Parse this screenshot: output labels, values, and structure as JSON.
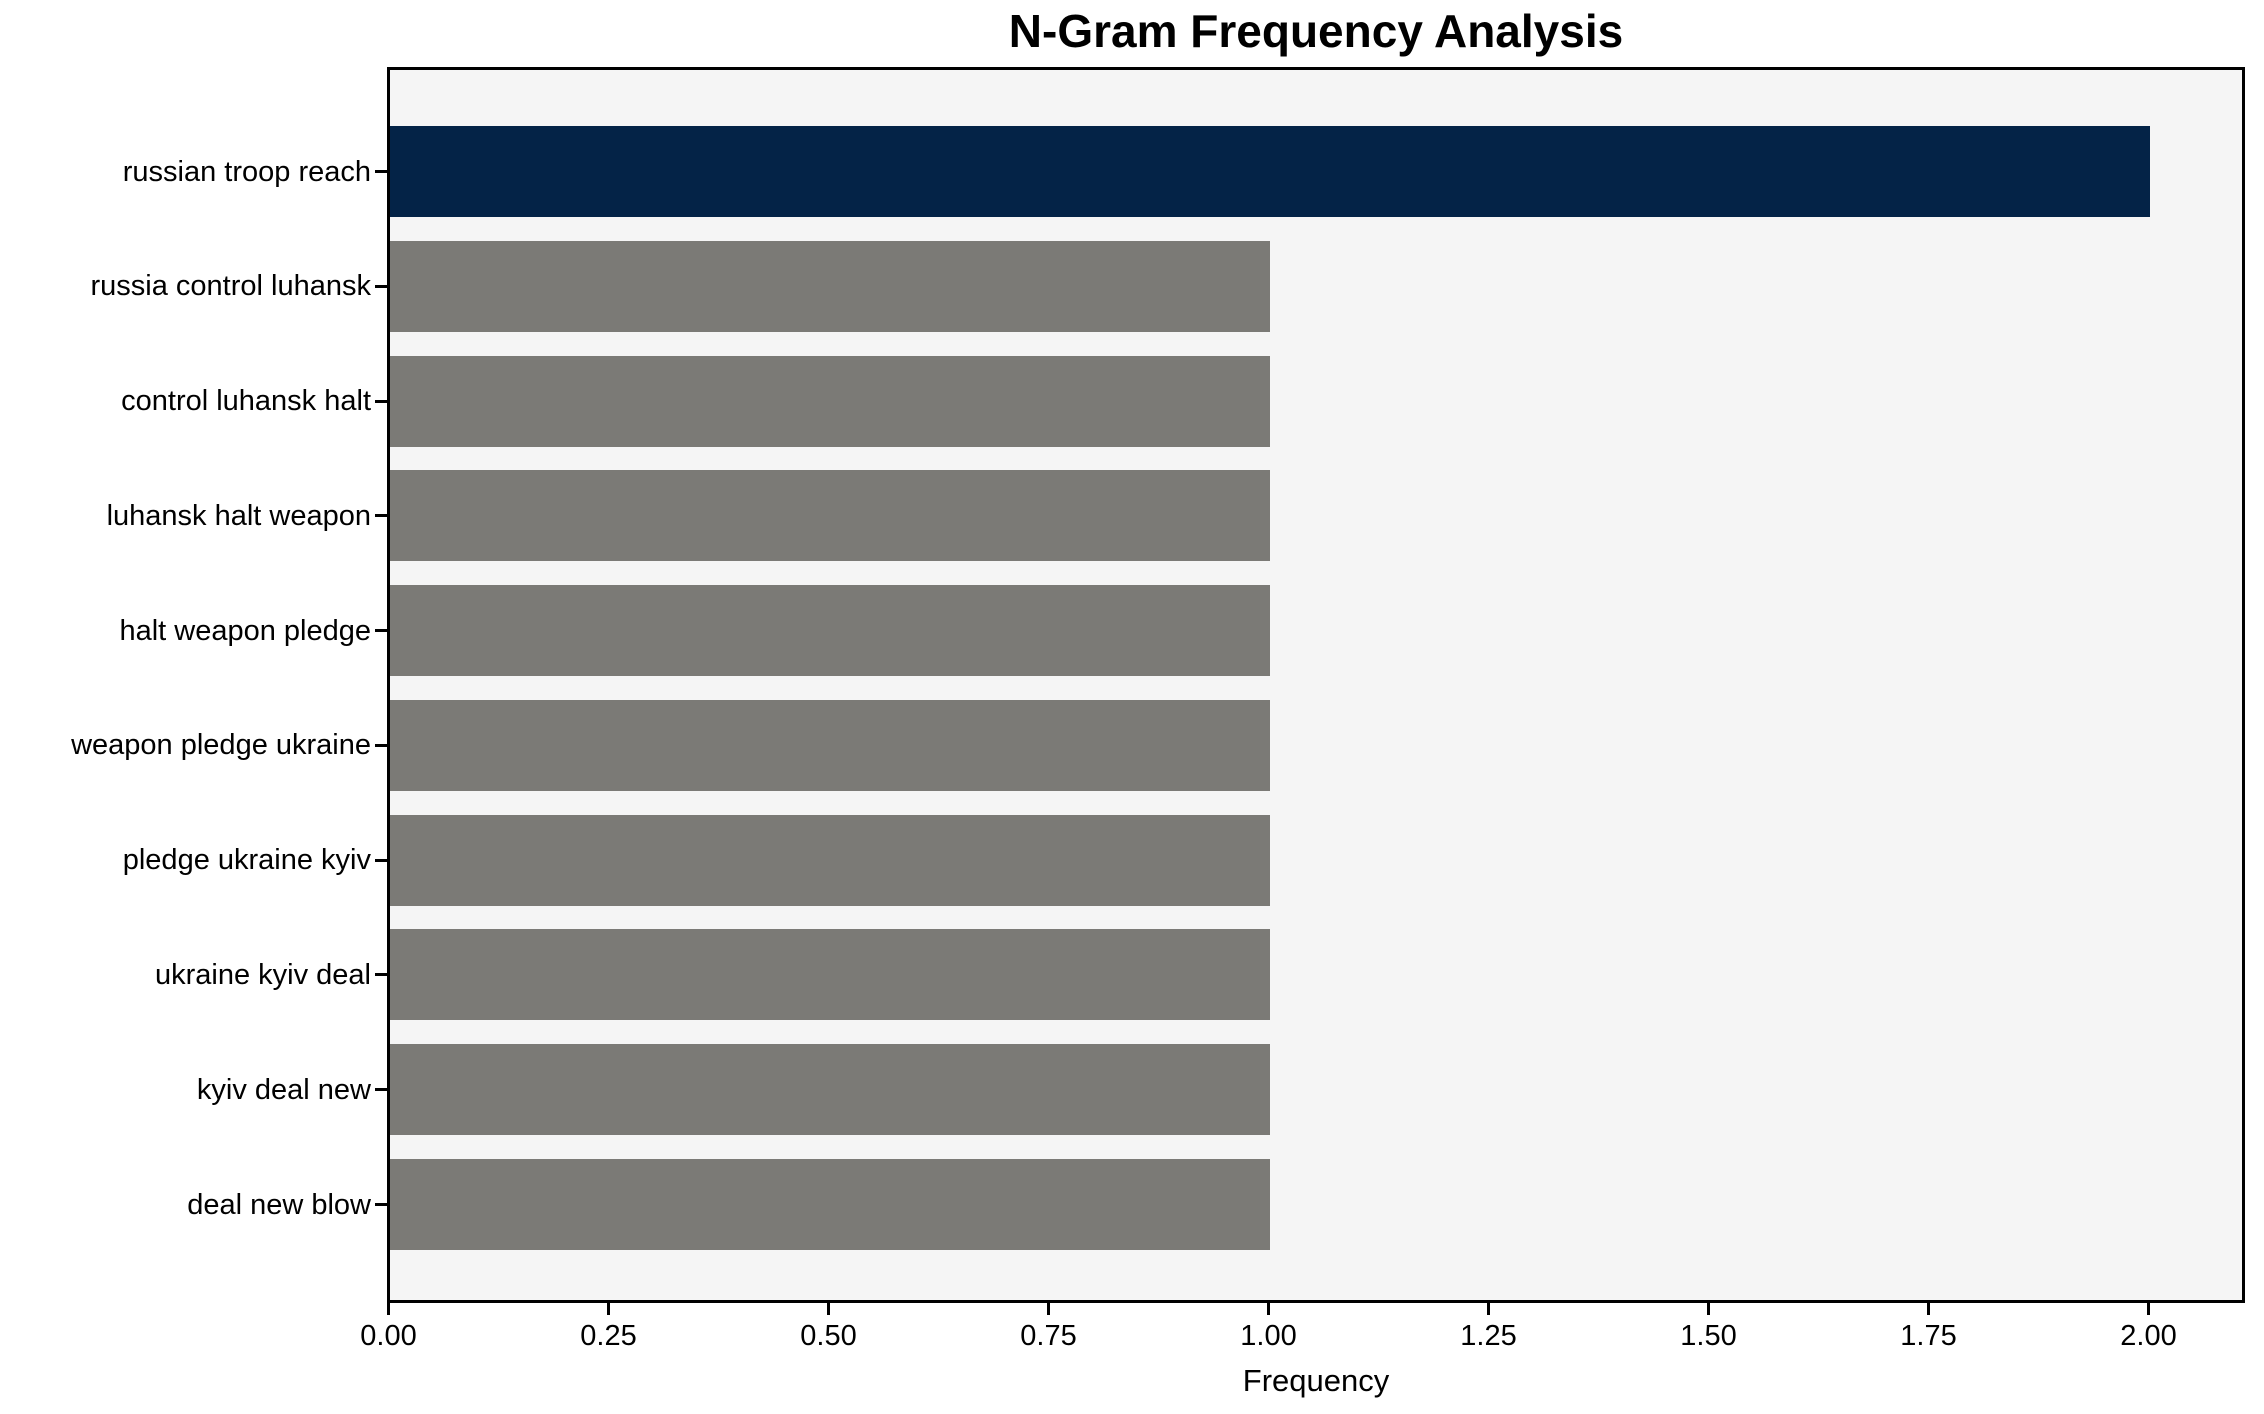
{
  "chart_data": {
    "type": "bar",
    "orientation": "horizontal",
    "title": "N-Gram Frequency Analysis",
    "xlabel": "Frequency",
    "ylabel": "",
    "categories": [
      "russian troop reach",
      "russia control luhansk",
      "control luhansk halt",
      "luhansk halt weapon",
      "halt weapon pledge",
      "weapon pledge ukraine",
      "pledge ukraine kyiv",
      "ukraine kyiv deal",
      "kyiv deal new",
      "deal new blow"
    ],
    "values": [
      2,
      1,
      1,
      1,
      1,
      1,
      1,
      1,
      1,
      1
    ],
    "bar_colors": [
      "#042347",
      "#7b7a76",
      "#7b7a76",
      "#7b7a76",
      "#7b7a76",
      "#7b7a76",
      "#7b7a76",
      "#7b7a76",
      "#7b7a76",
      "#7b7a76"
    ],
    "xlim": [
      0,
      2.11
    ],
    "xticks": [
      0,
      0.25,
      0.5,
      0.75,
      1.0,
      1.25,
      1.5,
      1.75,
      2.0
    ],
    "xtick_labels": [
      "0.00",
      "0.25",
      "0.50",
      "0.75",
      "1.00",
      "1.25",
      "1.50",
      "1.75",
      "2.00"
    ],
    "grid": false,
    "legend": "none",
    "colors": {
      "highlight_bar": "#042347",
      "default_bar": "#7b7a76",
      "plot_background": "#f5f5f5",
      "figure_background": "#ffffff",
      "spine": "#000000",
      "text": "#000000"
    }
  }
}
